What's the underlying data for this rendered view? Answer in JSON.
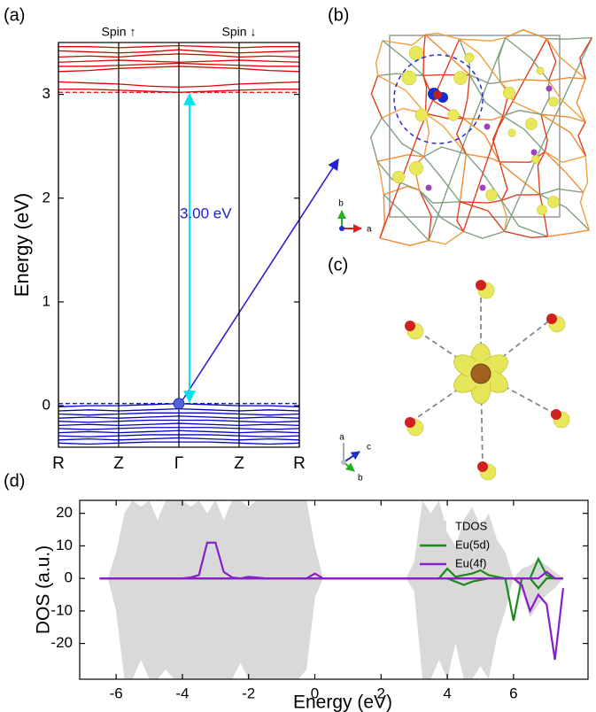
{
  "chart_data": [
    {
      "type": "line",
      "panel_label": "(a)",
      "ylabel": "Energy (eV)",
      "spin_labels": [
        "Spin ↑",
        "Spin ↓"
      ],
      "x": [
        0,
        0.5,
        1,
        1.5,
        2,
        2.5,
        3,
        3.5,
        4
      ],
      "xlim": [
        0,
        4
      ],
      "xticks": [
        {
          "value": 0,
          "label": "R"
        },
        {
          "value": 1,
          "label": "Z"
        },
        {
          "value": 2,
          "label": "Γ"
        },
        {
          "value": 3,
          "label": "Z"
        },
        {
          "value": 4,
          "label": "R"
        }
      ],
      "ylim": [
        -0.4,
        3.5
      ],
      "yticks": [
        0,
        1,
        2,
        3
      ],
      "grid_x": true,
      "series": [
        {
          "color": "#e00000",
          "values": [
            3.05,
            3.05,
            3.04,
            3.03,
            3.02,
            3.03,
            3.04,
            3.05,
            3.05
          ]
        },
        {
          "color": "#e00000",
          "values": [
            3.12,
            3.11,
            3.1,
            3.08,
            3.07,
            3.08,
            3.1,
            3.11,
            3.12
          ]
        },
        {
          "color": "#e00000",
          "values": [
            3.22,
            3.23,
            3.25,
            3.26,
            3.27,
            3.26,
            3.25,
            3.23,
            3.22
          ]
        },
        {
          "color": "#e00000",
          "values": [
            3.27,
            3.27,
            3.28,
            3.29,
            3.3,
            3.29,
            3.28,
            3.27,
            3.27
          ]
        },
        {
          "color": "#e00000",
          "values": [
            3.31,
            3.32,
            3.33,
            3.32,
            3.31,
            3.32,
            3.33,
            3.32,
            3.31
          ]
        },
        {
          "color": "#e00000",
          "values": [
            3.36,
            3.37,
            3.36,
            3.38,
            3.39,
            3.38,
            3.36,
            3.37,
            3.36
          ]
        },
        {
          "color": "#e00000",
          "values": [
            3.42,
            3.41,
            3.4,
            3.41,
            3.43,
            3.41,
            3.4,
            3.41,
            3.42
          ]
        },
        {
          "color": "#e00000",
          "values": [
            3.46,
            3.46,
            3.45,
            3.46,
            3.47,
            3.46,
            3.45,
            3.46,
            3.46
          ]
        },
        {
          "color": "#0000cc",
          "values": [
            -0.01,
            0,
            0,
            0.01,
            0.02,
            0.01,
            0,
            0,
            -0.01
          ]
        },
        {
          "color": "#0000cc",
          "values": [
            -0.05,
            -0.04,
            -0.05,
            -0.04,
            -0.03,
            -0.04,
            -0.05,
            -0.04,
            -0.05
          ]
        },
        {
          "color": "#0000cc",
          "values": [
            -0.08,
            -0.09,
            -0.08,
            -0.07,
            -0.07,
            -0.07,
            -0.08,
            -0.09,
            -0.08
          ]
        },
        {
          "color": "#0000cc",
          "values": [
            -0.12,
            -0.11,
            -0.12,
            -0.11,
            -0.1,
            -0.11,
            -0.12,
            -0.11,
            -0.12
          ]
        },
        {
          "color": "#0000cc",
          "values": [
            -0.15,
            -0.16,
            -0.15,
            -0.14,
            -0.14,
            -0.14,
            -0.15,
            -0.16,
            -0.15
          ]
        },
        {
          "color": "#0000cc",
          "values": [
            -0.19,
            -0.18,
            -0.19,
            -0.18,
            -0.17,
            -0.18,
            -0.19,
            -0.18,
            -0.19
          ]
        },
        {
          "color": "#0000cc",
          "values": [
            -0.22,
            -0.23,
            -0.22,
            -0.21,
            -0.21,
            -0.21,
            -0.22,
            -0.23,
            -0.22
          ]
        },
        {
          "color": "#0000cc",
          "values": [
            -0.26,
            -0.25,
            -0.26,
            -0.25,
            -0.24,
            -0.25,
            -0.26,
            -0.25,
            -0.26
          ]
        },
        {
          "color": "#0000cc",
          "values": [
            -0.29,
            -0.3,
            -0.29,
            -0.28,
            -0.28,
            -0.28,
            -0.29,
            -0.3,
            -0.29
          ]
        },
        {
          "color": "#0000cc",
          "values": [
            -0.33,
            -0.32,
            -0.33,
            -0.32,
            -0.31,
            -0.32,
            -0.33,
            -0.32,
            -0.33
          ]
        },
        {
          "color": "#0000cc",
          "values": [
            -0.36,
            -0.37,
            -0.36,
            -0.35,
            -0.35,
            -0.35,
            -0.36,
            -0.37,
            -0.36
          ]
        }
      ],
      "reference_lines": [
        {
          "value": 3.02,
          "color": "#e00000"
        },
        {
          "value": 0.02,
          "color": "#0000cc"
        }
      ],
      "gap": {
        "label": "3.00 eV",
        "from": 0.02,
        "to": 3.02,
        "color": "#00e5ee",
        "label_color": "#2020d0"
      },
      "vbm_point": {
        "x": 2,
        "y": 0.02,
        "color": "#5060e0"
      }
    },
    {
      "type": "area",
      "panel_label": "(d)",
      "xlabel": "Energy (eV)",
      "ylabel": "DOS (a.u.)",
      "xlim": [
        -7.1,
        8.25
      ],
      "xticks": [
        -6,
        -4,
        -2,
        0,
        2,
        4,
        6
      ],
      "ylim": [
        -31,
        24
      ],
      "yticks": [
        -20,
        -10,
        0,
        10,
        20
      ],
      "legend": "upper right",
      "x": [
        -6.5,
        -6.25,
        -6,
        -5.75,
        -5.5,
        -5.25,
        -5,
        -4.75,
        -4.5,
        -4.25,
        -4,
        -3.75,
        -3.5,
        -3.25,
        -3,
        -2.75,
        -2.5,
        -2.25,
        -2,
        -1.75,
        -1.5,
        -1.25,
        -1,
        -0.75,
        -0.5,
        -0.25,
        0,
        0.25,
        0.5,
        0.75,
        1,
        1.25,
        1.5,
        1.75,
        2,
        2.25,
        2.5,
        2.75,
        3,
        3.25,
        3.5,
        3.75,
        4,
        4.25,
        4.5,
        4.75,
        5,
        5.25,
        5.5,
        5.75,
        6,
        6.25,
        6.5,
        6.75,
        7,
        7.25,
        7.5
      ],
      "series": [
        {
          "name": "TDOS",
          "color": "#d9d9d9",
          "filled": true,
          "values": [
            0,
            0,
            8,
            20,
            24,
            22,
            24,
            18,
            24,
            24,
            24,
            22,
            24,
            20,
            24,
            18,
            24,
            24,
            22,
            24,
            24,
            24,
            24,
            24,
            24,
            24,
            10,
            0,
            0,
            0,
            0,
            0,
            0,
            0,
            0,
            0,
            0,
            0,
            5,
            24,
            20,
            24,
            14,
            10,
            18,
            22,
            16,
            20,
            12,
            8,
            0,
            3,
            4,
            6,
            4,
            2,
            0
          ],
          "values_down": [
            0,
            0,
            -10,
            -31,
            -31,
            -25,
            -31,
            -31,
            -28,
            -31,
            -31,
            -31,
            -31,
            -31,
            -31,
            -31,
            -31,
            -26,
            -31,
            -31,
            -31,
            -31,
            -31,
            -31,
            -31,
            -28,
            -6,
            0,
            0,
            0,
            0,
            0,
            0,
            0,
            0,
            0,
            0,
            0,
            -4,
            -31,
            -31,
            -25,
            -31,
            -20,
            -31,
            -31,
            -27,
            -31,
            -18,
            -10,
            0,
            -4,
            -12,
            -8,
            -5,
            -3,
            0
          ]
        },
        {
          "name": "Eu(5d)",
          "color": "#1a8a1a",
          "filled": false,
          "values": [
            0,
            0,
            0,
            0,
            0,
            0,
            0,
            0,
            0,
            0,
            0,
            0,
            0,
            0,
            0,
            0,
            0,
            0,
            0,
            0,
            0,
            0,
            0,
            0,
            0,
            0,
            0,
            0,
            0,
            0,
            0,
            0,
            0,
            0,
            0,
            0,
            0,
            0,
            0,
            0,
            0,
            0,
            3,
            0.5,
            1,
            1.5,
            2.5,
            1,
            0.5,
            0,
            0,
            0,
            0,
            6,
            1,
            0,
            0
          ],
          "values_down": [
            0,
            0,
            0,
            0,
            0,
            0,
            0,
            0,
            0,
            0,
            0,
            0,
            0,
            0,
            0,
            0,
            0,
            0,
            0,
            0,
            0,
            0,
            0,
            0,
            0,
            0,
            0,
            0,
            0,
            0,
            0,
            0,
            0,
            0,
            0,
            0,
            0,
            0,
            0,
            0,
            0,
            0,
            0,
            -1,
            -2,
            -1,
            -0.5,
            0,
            0,
            0,
            -13,
            0,
            0,
            -3,
            0,
            0,
            0
          ]
        },
        {
          "name": "Eu(4f)",
          "color": "#8a1ec8",
          "filled": false,
          "values": [
            0,
            0,
            0,
            0,
            0,
            0,
            0,
            0,
            0,
            0,
            0,
            0.3,
            1,
            11,
            11,
            2,
            0.3,
            0,
            0.5,
            0.3,
            0,
            0,
            0,
            0,
            0,
            0,
            1.5,
            0,
            0,
            0,
            0,
            0,
            0,
            0,
            0,
            0,
            0,
            0,
            0,
            0,
            0,
            0,
            0,
            0,
            0,
            0,
            0,
            0,
            0,
            0,
            0,
            0,
            0,
            0,
            2,
            0,
            0
          ],
          "values_down": [
            0,
            0,
            0,
            0,
            0,
            0,
            0,
            0,
            0,
            0,
            0,
            0,
            0,
            0,
            0,
            0,
            0,
            0,
            0,
            0,
            0,
            0,
            0,
            0,
            0,
            0,
            0,
            0,
            0,
            0,
            0,
            0,
            0,
            0,
            0,
            0,
            0,
            0,
            0,
            0,
            0,
            0,
            0,
            0,
            0,
            0,
            0,
            0,
            0,
            0,
            0,
            -2,
            -10,
            -5,
            -8,
            -25,
            -3
          ]
        }
      ]
    }
  ],
  "structure_panels": {
    "b": {
      "label": "(b)",
      "axes": [
        "b",
        "a"
      ]
    },
    "c": {
      "label": "(c)",
      "axes": [
        "a",
        "c",
        "b"
      ]
    }
  }
}
